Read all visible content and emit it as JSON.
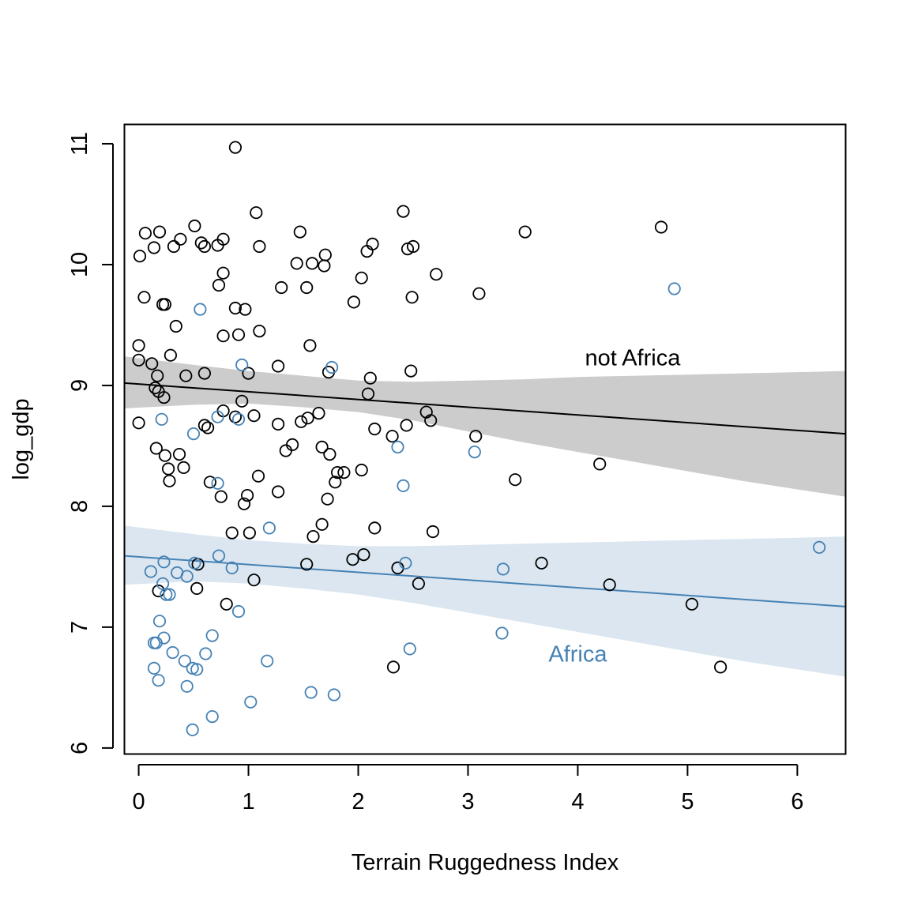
{
  "chart_data": {
    "type": "scatter",
    "title": "",
    "xlabel": "Terrain Ruggedness Index",
    "ylabel": "log_gdp",
    "xlim": [
      -0.13,
      6.44
    ],
    "ylim": [
      5.95,
      11.16
    ],
    "x_ticks": [
      "0",
      "1",
      "2",
      "3",
      "4",
      "5",
      "6"
    ],
    "y_ticks": [
      "6",
      "7",
      "8",
      "9",
      "10",
      "11"
    ],
    "grid": false,
    "legend": "none",
    "colors": {
      "not_africa_points": "#000000",
      "not_africa_line": "#000000",
      "not_africa_band": "#cccccc",
      "africa_points": "#4682b4",
      "africa_line": "#4682b4",
      "africa_band": "#dbe6f0"
    },
    "annotations": [
      {
        "text": "not Africa",
        "x": 4.5,
        "y": 9.23,
        "color": "#000000"
      },
      {
        "text": "Africa",
        "x": 4.0,
        "y": 6.78,
        "color": "#4682b4"
      }
    ],
    "series": [
      {
        "key": "not_africa",
        "line": {
          "x": [
            -0.13,
            6.44
          ],
          "y": [
            9.02,
            8.6
          ]
        },
        "band": {
          "x": [
            -0.13,
            0.5,
            1,
            1.5,
            2,
            2.5,
            3,
            3.5,
            4,
            4.5,
            5,
            5.5,
            6,
            6.44
          ],
          "upper": [
            9.24,
            9.17,
            9.12,
            9.08,
            9.04,
            9.03,
            9.04,
            9.05,
            9.07,
            9.08,
            9.09,
            9.1,
            9.11,
            9.12
          ],
          "lower": [
            8.81,
            8.84,
            8.85,
            8.82,
            8.78,
            8.71,
            8.62,
            8.53,
            8.45,
            8.37,
            8.29,
            8.21,
            8.14,
            8.08
          ]
        },
        "points": [
          [
            0.88,
            10.97
          ],
          [
            0.06,
            10.26
          ],
          [
            0.19,
            10.27
          ],
          [
            0.51,
            10.32
          ],
          [
            1.07,
            10.43
          ],
          [
            2.41,
            10.44
          ],
          [
            4.76,
            10.31
          ],
          [
            3.52,
            10.27
          ],
          [
            1.47,
            10.27
          ],
          [
            0.38,
            10.21
          ],
          [
            0.57,
            10.18
          ],
          [
            0.77,
            10.21
          ],
          [
            0.01,
            10.07
          ],
          [
            0.14,
            10.14
          ],
          [
            0.32,
            10.15
          ],
          [
            0.6,
            10.15
          ],
          [
            0.72,
            10.16
          ],
          [
            1.1,
            10.15
          ],
          [
            2.13,
            10.17
          ],
          [
            2.5,
            10.15
          ],
          [
            2.45,
            10.13
          ],
          [
            2.08,
            10.11
          ],
          [
            1.7,
            10.08
          ],
          [
            1.44,
            10.01
          ],
          [
            1.58,
            10.01
          ],
          [
            1.69,
            9.99
          ],
          [
            0.77,
            9.93
          ],
          [
            2.03,
            9.89
          ],
          [
            2.71,
            9.92
          ],
          [
            0.73,
            9.83
          ],
          [
            1.3,
            9.81
          ],
          [
            1.53,
            9.81
          ],
          [
            0.05,
            9.73
          ],
          [
            2.49,
            9.73
          ],
          [
            3.1,
            9.76
          ],
          [
            0.22,
            9.67
          ],
          [
            0.24,
            9.67
          ],
          [
            0.88,
            9.64
          ],
          [
            0.97,
            9.63
          ],
          [
            1.96,
            9.69
          ],
          [
            0.34,
            9.49
          ],
          [
            1.1,
            9.45
          ],
          [
            0.77,
            9.41
          ],
          [
            0.91,
            9.42
          ],
          [
            0.0,
            9.33
          ],
          [
            1.56,
            9.33
          ],
          [
            0.29,
            9.25
          ],
          [
            0.0,
            9.21
          ],
          [
            0.12,
            9.18
          ],
          [
            1.27,
            9.16
          ],
          [
            0.6,
            9.1
          ],
          [
            1.0,
            9.1
          ],
          [
            1.73,
            9.11
          ],
          [
            2.48,
            9.12
          ],
          [
            0.17,
            9.08
          ],
          [
            0.43,
            9.08
          ],
          [
            2.11,
            9.06
          ],
          [
            0.15,
            8.98
          ],
          [
            0.18,
            8.95
          ],
          [
            0.23,
            8.9
          ],
          [
            0.94,
            8.87
          ],
          [
            2.09,
            8.93
          ],
          [
            0.77,
            8.79
          ],
          [
            1.05,
            8.75
          ],
          [
            1.64,
            8.77
          ],
          [
            2.62,
            8.78
          ],
          [
            0.0,
            8.69
          ],
          [
            0.6,
            8.67
          ],
          [
            0.63,
            8.65
          ],
          [
            0.88,
            8.74
          ],
          [
            1.27,
            8.68
          ],
          [
            1.48,
            8.7
          ],
          [
            1.54,
            8.73
          ],
          [
            2.15,
            8.64
          ],
          [
            2.44,
            8.67
          ],
          [
            2.66,
            8.71
          ],
          [
            2.31,
            8.58
          ],
          [
            3.07,
            8.58
          ],
          [
            0.16,
            8.48
          ],
          [
            1.4,
            8.51
          ],
          [
            1.34,
            8.46
          ],
          [
            1.67,
            8.49
          ],
          [
            0.24,
            8.42
          ],
          [
            0.37,
            8.43
          ],
          [
            1.74,
            8.43
          ],
          [
            4.2,
            8.35
          ],
          [
            0.41,
            8.32
          ],
          [
            0.27,
            8.31
          ],
          [
            1.81,
            8.28
          ],
          [
            1.87,
            8.28
          ],
          [
            2.03,
            8.3
          ],
          [
            1.09,
            8.25
          ],
          [
            0.28,
            8.21
          ],
          [
            0.65,
            8.2
          ],
          [
            1.79,
            8.2
          ],
          [
            3.43,
            8.22
          ],
          [
            1.27,
            8.12
          ],
          [
            0.75,
            8.08
          ],
          [
            0.99,
            8.09
          ],
          [
            1.72,
            8.06
          ],
          [
            0.96,
            8.02
          ],
          [
            1.67,
            7.85
          ],
          [
            2.15,
            7.82
          ],
          [
            0.85,
            7.78
          ],
          [
            1.01,
            7.78
          ],
          [
            1.59,
            7.75
          ],
          [
            2.68,
            7.79
          ],
          [
            2.05,
            7.6
          ],
          [
            1.95,
            7.56
          ],
          [
            0.54,
            7.52
          ],
          [
            1.53,
            7.52
          ],
          [
            2.36,
            7.49
          ],
          [
            3.67,
            7.53
          ],
          [
            1.05,
            7.39
          ],
          [
            2.55,
            7.36
          ],
          [
            4.29,
            7.35
          ],
          [
            0.53,
            7.32
          ],
          [
            0.18,
            7.3
          ],
          [
            0.8,
            7.19
          ],
          [
            5.04,
            7.19
          ],
          [
            2.32,
            6.67
          ],
          [
            5.3,
            6.67
          ]
        ]
      },
      {
        "key": "africa",
        "line": {
          "x": [
            -0.13,
            6.44
          ],
          "y": [
            7.59,
            7.17
          ]
        },
        "band": {
          "x": [
            -0.13,
            0.5,
            1,
            1.5,
            2,
            2.5,
            3,
            3.5,
            4,
            4.5,
            5,
            5.5,
            6,
            6.44
          ],
          "upper": [
            7.84,
            7.77,
            7.72,
            7.69,
            7.67,
            7.67,
            7.68,
            7.69,
            7.7,
            7.71,
            7.72,
            7.73,
            7.74,
            7.75
          ],
          "lower": [
            7.35,
            7.38,
            7.36,
            7.32,
            7.27,
            7.2,
            7.12,
            7.04,
            6.96,
            6.88,
            6.8,
            6.72,
            6.65,
            6.59
          ],
          "note": "confidence band (PI)"
        },
        "points": [
          [
            4.88,
            9.8
          ],
          [
            0.56,
            9.63
          ],
          [
            0.94,
            9.17
          ],
          [
            1.76,
            9.15
          ],
          [
            0.21,
            8.72
          ],
          [
            0.72,
            8.74
          ],
          [
            0.91,
            8.72
          ],
          [
            0.5,
            8.6
          ],
          [
            2.36,
            8.49
          ],
          [
            3.06,
            8.45
          ],
          [
            0.72,
            8.19
          ],
          [
            2.41,
            8.17
          ],
          [
            1.19,
            7.82
          ],
          [
            6.2,
            7.66
          ],
          [
            0.73,
            7.59
          ],
          [
            0.23,
            7.54
          ],
          [
            0.51,
            7.53
          ],
          [
            2.43,
            7.53
          ],
          [
            0.85,
            7.49
          ],
          [
            3.32,
            7.48
          ],
          [
            0.11,
            7.46
          ],
          [
            0.35,
            7.45
          ],
          [
            0.44,
            7.42
          ],
          [
            0.22,
            7.36
          ],
          [
            0.25,
            7.27
          ],
          [
            0.28,
            7.27
          ],
          [
            0.91,
            7.13
          ],
          [
            0.19,
            7.05
          ],
          [
            3.31,
            6.95
          ],
          [
            0.67,
            6.93
          ],
          [
            0.23,
            6.91
          ],
          [
            0.14,
            6.87
          ],
          [
            0.16,
            6.87
          ],
          [
            2.47,
            6.82
          ],
          [
            0.31,
            6.79
          ],
          [
            0.61,
            6.78
          ],
          [
            0.42,
            6.72
          ],
          [
            1.17,
            6.72
          ],
          [
            0.14,
            6.66
          ],
          [
            0.49,
            6.66
          ],
          [
            0.53,
            6.65
          ],
          [
            0.18,
            6.56
          ],
          [
            0.44,
            6.51
          ],
          [
            1.57,
            6.46
          ],
          [
            1.78,
            6.44
          ],
          [
            1.02,
            6.38
          ],
          [
            0.67,
            6.26
          ],
          [
            0.49,
            6.15
          ]
        ]
      }
    ]
  }
}
